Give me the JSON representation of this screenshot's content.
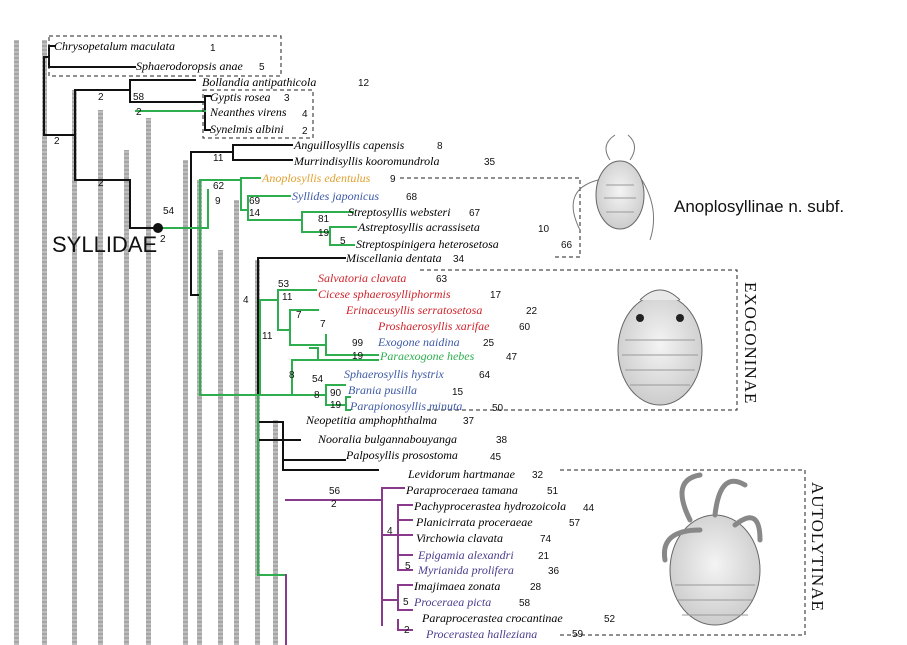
{
  "colors": {
    "black": "#111111",
    "green": "#2eae4e",
    "purple": "#8a3a8a",
    "gray_bar": "#b5b5b5",
    "red": "#d0222a",
    "blue": "#3e5aa6",
    "orange": "#e0a030",
    "dark_purple": "#4a3c8e"
  },
  "labels": {
    "syllidae": "SYLLIDAE",
    "anoplosyllinae": "Anoplosyllinae n. subf.",
    "exogoninae": "EXOGONINAE",
    "autolytinae": "AUTOLYTINAE"
  },
  "taxa": [
    {
      "name": "Chrysopetalum maculata",
      "num": "1",
      "color": "black"
    },
    {
      "name": "Sphaerodoropsis anae",
      "num": "5",
      "color": "black"
    },
    {
      "name": "Bollandia antipathicola",
      "num": "12",
      "color": "black"
    },
    {
      "name": "Gyptis rosea",
      "num": "3",
      "color": "black"
    },
    {
      "name": "Neanthes virens",
      "num": "4",
      "color": "black"
    },
    {
      "name": "Synelmis albini",
      "num": "2",
      "color": "black"
    },
    {
      "name": "Anguillosyllis capensis",
      "num": "8",
      "color": "black"
    },
    {
      "name": "Murrindisyllis kooromundrola",
      "num": "35",
      "color": "black"
    },
    {
      "name": "Anoplosyllis edentulus",
      "num": "9",
      "color": "orange"
    },
    {
      "name": "Syllides japonicus",
      "num": "68",
      "color": "blue"
    },
    {
      "name": "Streptosyllis websteri",
      "num": "67",
      "color": "black"
    },
    {
      "name": "Astreptosyllis acrassiseta",
      "num": "10",
      "color": "black"
    },
    {
      "name": "Streptospinigera heterosetosa",
      "num": "66",
      "color": "black"
    },
    {
      "name": "Miscellania dentata",
      "num": "34",
      "color": "black"
    },
    {
      "name": "Salvatoria clavata",
      "num": "63",
      "color": "red"
    },
    {
      "name": "Cicese sphaerosylliphormis",
      "num": "17",
      "color": "red"
    },
    {
      "name": "Erinaceusyllis serratosetosa",
      "num": "22",
      "color": "red"
    },
    {
      "name": "Proshaerosyllis xarifae",
      "num": "60",
      "color": "red"
    },
    {
      "name": "Exogone naidina",
      "num": "25",
      "color": "blue"
    },
    {
      "name": "Paraexogone hebes",
      "num": "47",
      "color": "green"
    },
    {
      "name": "Sphaerosyllis hystrix",
      "num": "64",
      "color": "blue"
    },
    {
      "name": "Brania pusilla",
      "num": "15",
      "color": "blue"
    },
    {
      "name": "Parapionosyllis minuta",
      "num": "50",
      "color": "blue"
    },
    {
      "name": "Neopetitia amphophthalma",
      "num": "37",
      "color": "black"
    },
    {
      "name": "Nooralia bulgannabouyanga",
      "num": "38",
      "color": "black"
    },
    {
      "name": "Palposyllis prosostoma",
      "num": "45",
      "color": "black"
    },
    {
      "name": "Levidorum hartmanae",
      "num": "32",
      "color": "black"
    },
    {
      "name": "Paraproceraea tamana",
      "num": "51",
      "color": "black"
    },
    {
      "name": "Pachyprocerastea hydrozoicola",
      "num": "44",
      "color": "black"
    },
    {
      "name": "Planicirrata proceraeae",
      "num": "57",
      "color": "black"
    },
    {
      "name": "Virchowia clavata",
      "num": "74",
      "color": "black"
    },
    {
      "name": "Epigamia alexandri",
      "num": "21",
      "color": "dark_purple"
    },
    {
      "name": "Myrianida prolifera",
      "num": "36",
      "color": "dark_purple"
    },
    {
      "name": "Imajimaea zonata",
      "num": "28",
      "color": "black"
    },
    {
      "name": "Proceraea picta",
      "num": "58",
      "color": "dark_purple"
    },
    {
      "name": "Paraprocerastea crocantinae",
      "num": "52",
      "color": "black"
    },
    {
      "name": "Procerastea halleziana",
      "num": "59",
      "color": "dark_purple"
    }
  ],
  "support": [
    {
      "value": "2"
    },
    {
      "value": "2"
    },
    {
      "value": "2"
    },
    {
      "value": "58"
    },
    {
      "value": "2"
    },
    {
      "value": "11"
    },
    {
      "value": "62"
    },
    {
      "value": "9"
    },
    {
      "value": "54"
    },
    {
      "value": "2"
    },
    {
      "value": "69"
    },
    {
      "value": "14"
    },
    {
      "value": "81"
    },
    {
      "value": "19"
    },
    {
      "value": "5"
    },
    {
      "value": "4"
    },
    {
      "value": "53"
    },
    {
      "value": "11"
    },
    {
      "value": "7"
    },
    {
      "value": "7"
    },
    {
      "value": "11"
    },
    {
      "value": "99"
    },
    {
      "value": "19"
    },
    {
      "value": "8"
    },
    {
      "value": "54"
    },
    {
      "value": "8"
    },
    {
      "value": "90"
    },
    {
      "value": "19"
    },
    {
      "value": "56"
    },
    {
      "value": "2"
    },
    {
      "value": "4"
    },
    {
      "value": "5"
    },
    {
      "value": "5"
    },
    {
      "value": "2"
    }
  ]
}
